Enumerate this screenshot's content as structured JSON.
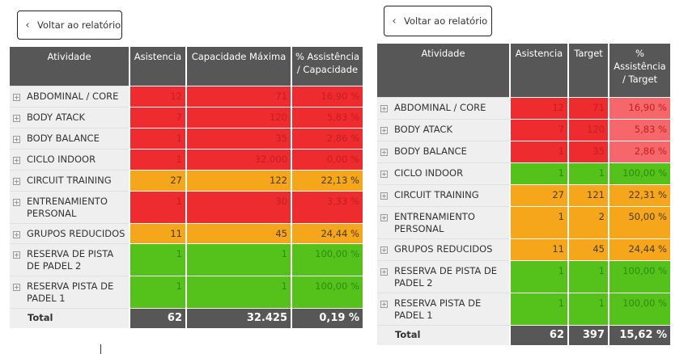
{
  "left": {
    "back_button": "Voltar ao relatório",
    "headers": [
      "Atividade",
      "Asistencia",
      "Capacidade Máxima",
      "% Assistência / Capacidade"
    ],
    "rows": [
      {
        "activity": "ABDOMINAL / CORE",
        "attendance": "12",
        "capacity": "71",
        "pct": "16,90 %",
        "color": "red"
      },
      {
        "activity": "BODY ATACK",
        "attendance": "7",
        "capacity": "120",
        "pct": "5,83 %",
        "color": "red"
      },
      {
        "activity": "BODY BALANCE",
        "attendance": "1",
        "capacity": "35",
        "pct": "2,86 %",
        "color": "red"
      },
      {
        "activity": "CICLO INDOOR",
        "attendance": "1",
        "capacity": "32.000",
        "pct": "0,00 %",
        "color": "red"
      },
      {
        "activity": "CIRCUIT TRAINING",
        "attendance": "27",
        "capacity": "122",
        "pct": "22,13 %",
        "color": "orange"
      },
      {
        "activity": "ENTRENAMIENTO PERSONAL",
        "attendance": "1",
        "capacity": "30",
        "pct": "3,33 %",
        "color": "red"
      },
      {
        "activity": "GRUPOS REDUCIDOS",
        "attendance": "11",
        "capacity": "45",
        "pct": "24,44 %",
        "color": "orange"
      },
      {
        "activity": "RESERVA DE PISTA DE PADEL 2",
        "attendance": "1",
        "capacity": "1",
        "pct": "100,00 %",
        "color": "green"
      },
      {
        "activity": "RESERVA PISTA DE PADEL 1",
        "attendance": "1",
        "capacity": "1",
        "pct": "100,00 %",
        "color": "green"
      }
    ],
    "total": {
      "label": "Total",
      "attendance": "62",
      "capacity": "32.425",
      "pct": "0,19 %"
    }
  },
  "right": {
    "back_button": "Voltar ao relatório",
    "headers": [
      "Atividade",
      "Asistencia",
      "Target",
      "% Assistência / Target"
    ],
    "rows": [
      {
        "activity": "ABDOMINAL / CORE",
        "attendance": "12",
        "target": "71",
        "pct": "16,90 %",
        "color": "red",
        "pct_color": "lred"
      },
      {
        "activity": "BODY ATACK",
        "attendance": "7",
        "target": "120",
        "pct": "5,83 %",
        "color": "red",
        "pct_color": "lred"
      },
      {
        "activity": "BODY BALANCE",
        "attendance": "1",
        "target": "35",
        "pct": "2,86 %",
        "color": "red",
        "pct_color": "lred"
      },
      {
        "activity": "CICLO INDOOR",
        "attendance": "1",
        "target": "1",
        "pct": "100,00 %",
        "color": "green",
        "pct_color": "green"
      },
      {
        "activity": "CIRCUIT TRAINING",
        "attendance": "27",
        "target": "121",
        "pct": "22,31 %",
        "color": "orange",
        "pct_color": "orange"
      },
      {
        "activity": "ENTRENAMIENTO PERSONAL",
        "attendance": "1",
        "target": "2",
        "pct": "50,00 %",
        "color": "orange",
        "pct_color": "orange"
      },
      {
        "activity": "GRUPOS REDUCIDOS",
        "attendance": "11",
        "target": "45",
        "pct": "24,44 %",
        "color": "orange",
        "pct_color": "orange"
      },
      {
        "activity": "RESERVA DE PISTA DE PADEL 2",
        "attendance": "1",
        "target": "1",
        "pct": "100,00 %",
        "color": "green",
        "pct_color": "green"
      },
      {
        "activity": "RESERVA PISTA DE PADEL 1",
        "attendance": "1",
        "target": "1",
        "pct": "100,00 %",
        "color": "green",
        "pct_color": "green"
      }
    ],
    "total": {
      "label": "Total",
      "attendance": "62",
      "target": "397",
      "pct": "15,62 %"
    }
  },
  "colors": {
    "red": "#ee2b2f",
    "light_red": "#f5676a",
    "orange": "#f6a61a",
    "green": "#55c21c",
    "header": "#575757"
  }
}
